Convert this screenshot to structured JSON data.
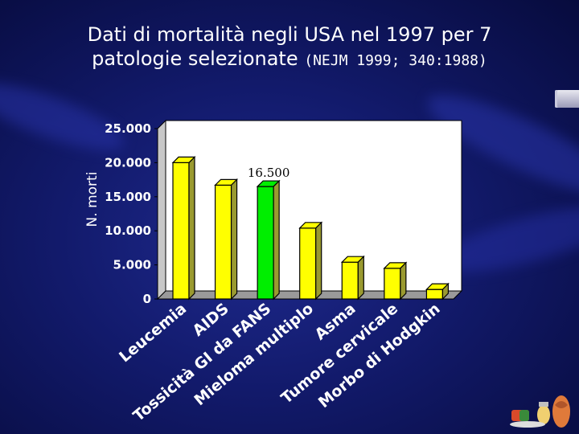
{
  "slide": {
    "title_line1": "Dati di mortalità negli USA nel 1997 per 7",
    "title_line2": "patologie selezionate",
    "title_ref": "(NEJM 1999; 340:1988)"
  },
  "colors": {
    "bar": "#ffff00",
    "highlight": "#00ee00",
    "plot_bg": "#ffffff"
  },
  "chart_data": {
    "type": "bar",
    "categories": [
      "Leucemia",
      "AIDS",
      "Tossicità GI da FANS",
      "Mieloma multiplo",
      "Asma",
      "Tumore cervicale",
      "Morbo di Hodgkin"
    ],
    "values": [
      20000,
      16700,
      16500,
      10400,
      5400,
      4500,
      1400
    ],
    "highlight_index": 2,
    "annotation": {
      "text": "16.500",
      "category": "Tossicità GI da FANS"
    },
    "ylabel": "N. morti",
    "ylim": [
      0,
      25000
    ],
    "yticks": [
      0,
      5000,
      10000,
      15000,
      20000,
      25000
    ],
    "ytick_labels": [
      "0",
      "5.000",
      "10.000",
      "15.000",
      "20.000",
      "25.000"
    ],
    "grid": false
  }
}
